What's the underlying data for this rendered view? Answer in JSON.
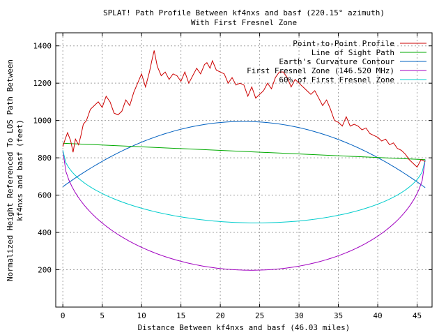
{
  "chart_data": {
    "type": "line",
    "title": "SPLAT! Path Profile Between kf4nxs and basf (220.15° azimuth)",
    "subtitle": "With First Fresnel Zone",
    "xlabel": "Distance Between kf4nxs and basf (46.03 miles)",
    "ylabel_line1": "Normalized Height Referenced To LOS Path Between",
    "ylabel_line2": "kf4nxs and basf (feet)",
    "xlim": [
      -0.9,
      46.9
    ],
    "ylim": [
      0,
      1470
    ],
    "xticks": [
      0,
      5,
      10,
      15,
      20,
      25,
      30,
      35,
      40,
      45
    ],
    "yticks": [
      200,
      400,
      600,
      800,
      1000,
      1200,
      1400
    ],
    "grid": true,
    "legend_position": "top-right",
    "series": [
      {
        "name": "Point-to-Point Profile",
        "color": "#cc0000",
        "points": [
          [
            0,
            860
          ],
          [
            0.3,
            900
          ],
          [
            0.6,
            935
          ],
          [
            1,
            890
          ],
          [
            1.3,
            830
          ],
          [
            1.6,
            900
          ],
          [
            2,
            870
          ],
          [
            2.3,
            920
          ],
          [
            2.6,
            980
          ],
          [
            3,
            1000
          ],
          [
            3.5,
            1060
          ],
          [
            4,
            1080
          ],
          [
            4.5,
            1100
          ],
          [
            5,
            1070
          ],
          [
            5.5,
            1130
          ],
          [
            6,
            1100
          ],
          [
            6.5,
            1040
          ],
          [
            7,
            1030
          ],
          [
            7.5,
            1050
          ],
          [
            8,
            1110
          ],
          [
            8.5,
            1080
          ],
          [
            9,
            1150
          ],
          [
            9.5,
            1200
          ],
          [
            10,
            1250
          ],
          [
            10.5,
            1180
          ],
          [
            11,
            1260
          ],
          [
            11.3,
            1320
          ],
          [
            11.6,
            1375
          ],
          [
            12,
            1290
          ],
          [
            12.5,
            1240
          ],
          [
            13,
            1260
          ],
          [
            13.5,
            1220
          ],
          [
            14,
            1250
          ],
          [
            14.5,
            1240
          ],
          [
            15,
            1210
          ],
          [
            15.5,
            1260
          ],
          [
            16,
            1200
          ],
          [
            16.5,
            1240
          ],
          [
            17,
            1280
          ],
          [
            17.5,
            1250
          ],
          [
            18,
            1300
          ],
          [
            18.3,
            1310
          ],
          [
            18.7,
            1280
          ],
          [
            19,
            1320
          ],
          [
            19.5,
            1270
          ],
          [
            20,
            1260
          ],
          [
            20.5,
            1250
          ],
          [
            21,
            1200
          ],
          [
            21.5,
            1230
          ],
          [
            22,
            1190
          ],
          [
            22.5,
            1200
          ],
          [
            23,
            1190
          ],
          [
            23.5,
            1130
          ],
          [
            24,
            1180
          ],
          [
            24.5,
            1120
          ],
          [
            25,
            1140
          ],
          [
            25.5,
            1160
          ],
          [
            26,
            1200
          ],
          [
            26.5,
            1170
          ],
          [
            27,
            1230
          ],
          [
            27.5,
            1260
          ],
          [
            28,
            1260
          ],
          [
            28.5,
            1230
          ],
          [
            29,
            1180
          ],
          [
            29.5,
            1220
          ],
          [
            30,
            1200
          ],
          [
            30.5,
            1180
          ],
          [
            31,
            1160
          ],
          [
            31.5,
            1140
          ],
          [
            32,
            1160
          ],
          [
            32.5,
            1120
          ],
          [
            33,
            1080
          ],
          [
            33.5,
            1110
          ],
          [
            34,
            1060
          ],
          [
            34.5,
            1000
          ],
          [
            35,
            990
          ],
          [
            35.5,
            970
          ],
          [
            36,
            1020
          ],
          [
            36.5,
            970
          ],
          [
            37,
            980
          ],
          [
            37.5,
            970
          ],
          [
            38,
            950
          ],
          [
            38.5,
            960
          ],
          [
            39,
            930
          ],
          [
            39.5,
            920
          ],
          [
            40,
            910
          ],
          [
            40.5,
            890
          ],
          [
            41,
            900
          ],
          [
            41.5,
            870
          ],
          [
            42,
            880
          ],
          [
            42.5,
            850
          ],
          [
            43,
            840
          ],
          [
            43.5,
            820
          ],
          [
            44,
            790
          ],
          [
            44.5,
            770
          ],
          [
            45,
            750
          ],
          [
            45.5,
            790
          ],
          [
            46.03,
            780
          ]
        ]
      },
      {
        "name": "Line of Sight Path",
        "color": "#00aa00",
        "points": [
          [
            0,
            878
          ],
          [
            46.03,
            790
          ]
        ]
      },
      {
        "name": "Earth's Curvature Contour",
        "color": "#0060c0",
        "shape": "parabola",
        "y_start": 645,
        "y_mid": 995,
        "y_end": 640
      },
      {
        "name": "First Fresnel Zone (146.520 MHz)",
        "color": "#a000c0",
        "shape": "ellipse",
        "y_start": 840,
        "y_mid": 198,
        "y_end": 790
      },
      {
        "name": "60% of First Fresnel Zone",
        "color": "#00cccc",
        "shape": "ellipse",
        "y_start": 840,
        "y_mid": 452,
        "y_end": 790
      }
    ]
  }
}
